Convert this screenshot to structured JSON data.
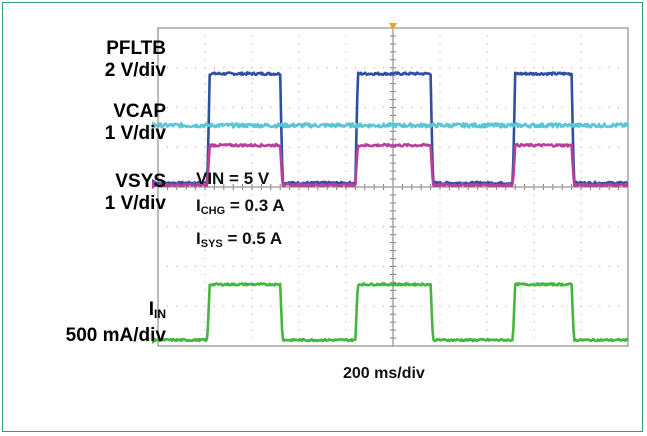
{
  "colors": {
    "pfltb": "#2f4fa2",
    "vcap": "#58c6d6",
    "vsys": "#b8409a",
    "iin": "#44b63f",
    "trigger": "#f0a020",
    "grid": "#7a7a7a",
    "frame": "#2e9e78"
  },
  "labels": {
    "pfltb_name": "PFLTB",
    "pfltb_scale": "2 V/div",
    "vcap_name": "VCAP",
    "vcap_scale": "1 V/div",
    "vsys_name": "VSYS",
    "vsys_scale": "1 V/div",
    "iin_main": "I",
    "iin_sub": "IN",
    "iin_scale": "500 mA/div"
  },
  "conditions": {
    "vin": "VIN = 5 V",
    "ichg_main": "I",
    "ichg_sub": "CHG",
    "ichg_value": " = 0.3 A",
    "isys_main": "I",
    "isys_sub": "SYS",
    "isys_value": " = 0.5 A"
  },
  "timebase": "200 ms/div",
  "chart_data": {
    "type": "line",
    "x_unit": "div",
    "x_range": [
      0,
      10
    ],
    "y_range_div": [
      0,
      8
    ],
    "grid": true,
    "pulses": [
      {
        "start": 1.1,
        "end": 2.6
      },
      {
        "start": 4.25,
        "end": 5.8
      },
      {
        "start": 7.6,
        "end": 8.8
      }
    ],
    "series": [
      {
        "name": "PFLTB",
        "scale": "2 V/div",
        "color_key": "pfltb",
        "low": 4.1,
        "high": 6.85,
        "noise": 0.03
      },
      {
        "name": "VCAP",
        "scale": "1 V/div",
        "color_key": "vcap",
        "low": 5.55,
        "high": 5.55,
        "noise": 0.05
      },
      {
        "name": "VSYS",
        "scale": "1 V/div",
        "color_key": "vsys",
        "low": 4.05,
        "high": 5.05,
        "noise": 0.03
      },
      {
        "name": "IIN",
        "scale": "500 mA/div",
        "color_key": "iin",
        "low": 0.15,
        "high": 1.55,
        "noise": 0.025
      }
    ]
  }
}
